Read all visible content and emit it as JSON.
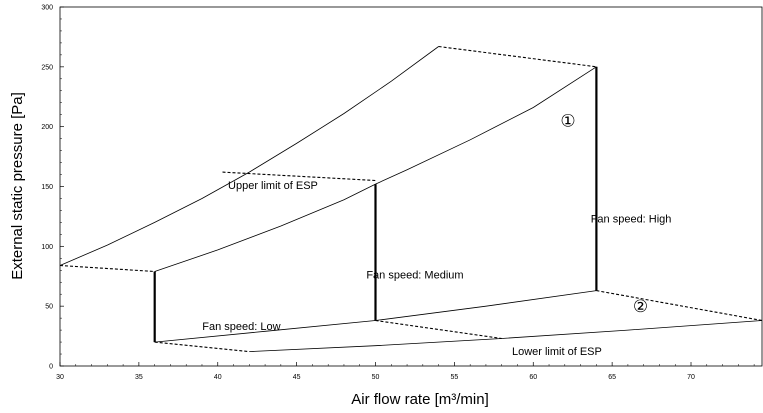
{
  "chart_data": {
    "type": "line",
    "xlabel": "Air flow rate [m³/min]",
    "ylabel": "External static pressure [Pa]",
    "xlim": [
      30,
      74.5
    ],
    "ylim": [
      0,
      300
    ],
    "x_ticks": [
      "30",
      "35",
      "40",
      "45",
      "50",
      "55",
      "60",
      "65",
      "70"
    ],
    "y_ticks": [
      "0",
      "50",
      "100",
      "150",
      "200",
      "250",
      "300"
    ],
    "grid": false,
    "legend": "none",
    "series": [
      {
        "style": "solid-thin",
        "x": [
          30,
          33,
          36,
          39,
          42,
          45,
          48,
          51,
          54
        ],
        "y": [
          84,
          101,
          120,
          140,
          162,
          186,
          211,
          238,
          267
        ]
      },
      {
        "style": "solid-thin",
        "x": [
          36,
          40,
          44,
          48,
          50,
          52,
          56,
          60,
          64
        ],
        "y": [
          79,
          97,
          117,
          139,
          152,
          164,
          189,
          216,
          250
        ]
      },
      {
        "style": "solid-thin",
        "x": [
          36,
          43,
          50,
          57,
          64
        ],
        "y": [
          20,
          29,
          38,
          50,
          63
        ]
      },
      {
        "style": "solid-thin",
        "x": [
          42,
          50,
          58,
          66,
          74.5
        ],
        "y": [
          12,
          17,
          23,
          30,
          38
        ]
      },
      {
        "style": "dashed",
        "x": [
          30,
          36
        ],
        "y": [
          84,
          79
        ]
      },
      {
        "style": "dashed",
        "x": [
          36,
          42
        ],
        "y": [
          20,
          12
        ]
      },
      {
        "style": "dashed",
        "x": [
          40.3,
          50
        ],
        "y": [
          162,
          155
        ]
      },
      {
        "style": "dashed",
        "x": [
          50,
          58
        ],
        "y": [
          38,
          23
        ]
      },
      {
        "style": "dashed",
        "x": [
          54,
          64
        ],
        "y": [
          267,
          250
        ]
      },
      {
        "style": "dashed",
        "x": [
          64,
          74.5
        ],
        "y": [
          63,
          38
        ]
      },
      {
        "style": "solid-thick",
        "x": [
          36,
          36
        ],
        "y": [
          20,
          79
        ]
      },
      {
        "style": "solid-thick",
        "x": [
          50,
          50
        ],
        "y": [
          38,
          152
        ]
      },
      {
        "style": "solid-thick",
        "x": [
          64,
          64
        ],
        "y": [
          63,
          250
        ]
      }
    ],
    "annotations": [
      {
        "text": "Upper limit of ESP",
        "x": 43.5,
        "y": 148,
        "kind": "label"
      },
      {
        "text": "Fan speed: High",
        "x": 66.2,
        "y": 120,
        "kind": "label"
      },
      {
        "text": "Fan speed: Medium",
        "x": 52.5,
        "y": 73,
        "kind": "label"
      },
      {
        "text": "Fan speed: Low",
        "x": 41.5,
        "y": 30,
        "kind": "label"
      },
      {
        "text": "Lower limit of ESP",
        "x": 61.5,
        "y": 9,
        "kind": "label"
      },
      {
        "text": "①",
        "x": 62.2,
        "y": 200,
        "kind": "marker"
      },
      {
        "text": "②",
        "x": 66.8,
        "y": 45,
        "kind": "marker"
      }
    ]
  }
}
